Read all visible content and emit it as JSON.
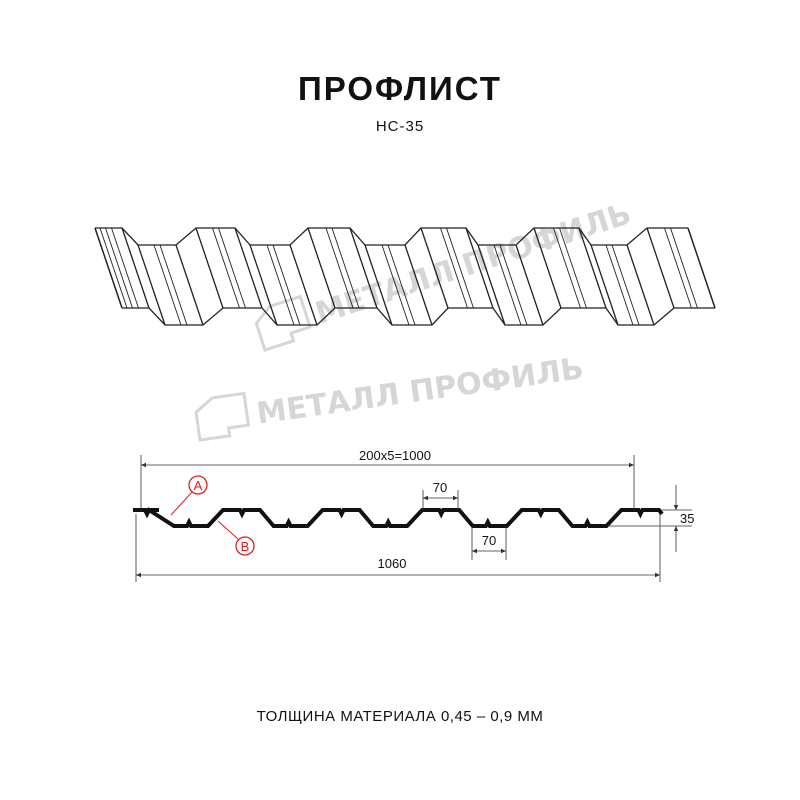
{
  "header": {
    "title": "ПРОФЛИСТ",
    "subtitle": "НС-35"
  },
  "watermark": {
    "text": "МЕТАЛЛ ПРОФИЛЬ"
  },
  "dimensions": {
    "pitch_total": "200x5=1000",
    "crest_width": "70",
    "trough_width": "70",
    "height": "35",
    "full_width": "1060"
  },
  "callouts": {
    "a": "A",
    "b": "B",
    "color": "#e01e1e"
  },
  "footer": {
    "thickness": "ТОЛЩИНА МАТЕРИАЛА 0,45 – 0,9 ММ"
  }
}
